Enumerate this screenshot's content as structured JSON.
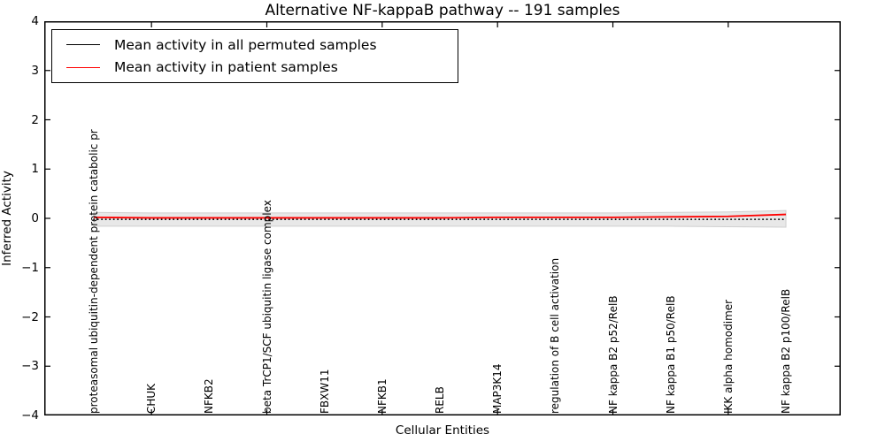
{
  "chart_data": {
    "type": "line",
    "title": "Alternative NF-kappaB pathway -- 191 samples",
    "xlabel": "Cellular Entities",
    "ylabel": "Inferred Activity",
    "ylim": [
      -4,
      4
    ],
    "yticks": [
      4,
      3,
      2,
      1,
      0,
      -1,
      -2,
      -3,
      -4
    ],
    "ytick_labels": [
      "4",
      "3",
      "2",
      "1",
      "0",
      "−1",
      "−2",
      "−3",
      "−4"
    ],
    "grid": false,
    "legend_position": "upper left",
    "categories": [
      "proteasomal ubiquitin-dependent protein catabolic pr",
      "CHUK",
      "NFKB2",
      "beta TrCP1/SCF ubiquitin ligase complex",
      "FBXW11",
      "NFKB1",
      "RELB",
      "MAP3K14",
      "regulation of B cell activation",
      "NF kappa B2 p52/RelB",
      "NF kappa B1 p50/RelB",
      "IKK alpha homodimer",
      "NF kappa B2 p100/RelB"
    ],
    "xtick_indices": [
      1,
      3,
      5,
      7,
      9,
      11
    ],
    "series": [
      {
        "name": "Mean activity in all permuted samples",
        "color": "#000000",
        "style": "dotted",
        "values": [
          -0.02,
          -0.02,
          -0.02,
          -0.02,
          -0.02,
          -0.02,
          -0.02,
          -0.02,
          -0.02,
          -0.02,
          -0.02,
          -0.02,
          -0.02
        ]
      },
      {
        "name": "Mean activity in patient samples",
        "color": "#ff0000",
        "style": "solid",
        "values": [
          0.02,
          0.01,
          0.01,
          0.01,
          0.01,
          0.01,
          0.01,
          0.02,
          0.02,
          0.02,
          0.03,
          0.04,
          0.08
        ]
      }
    ],
    "band": {
      "color": "#e8e8e8",
      "edge_color": "#cfcfcf",
      "upper": [
        0.12,
        0.11,
        0.11,
        0.11,
        0.11,
        0.11,
        0.11,
        0.11,
        0.11,
        0.11,
        0.12,
        0.13,
        0.16
      ],
      "lower": [
        -0.16,
        -0.16,
        -0.16,
        -0.16,
        -0.16,
        -0.16,
        -0.16,
        -0.16,
        -0.16,
        -0.16,
        -0.16,
        -0.17,
        -0.18
      ]
    }
  }
}
